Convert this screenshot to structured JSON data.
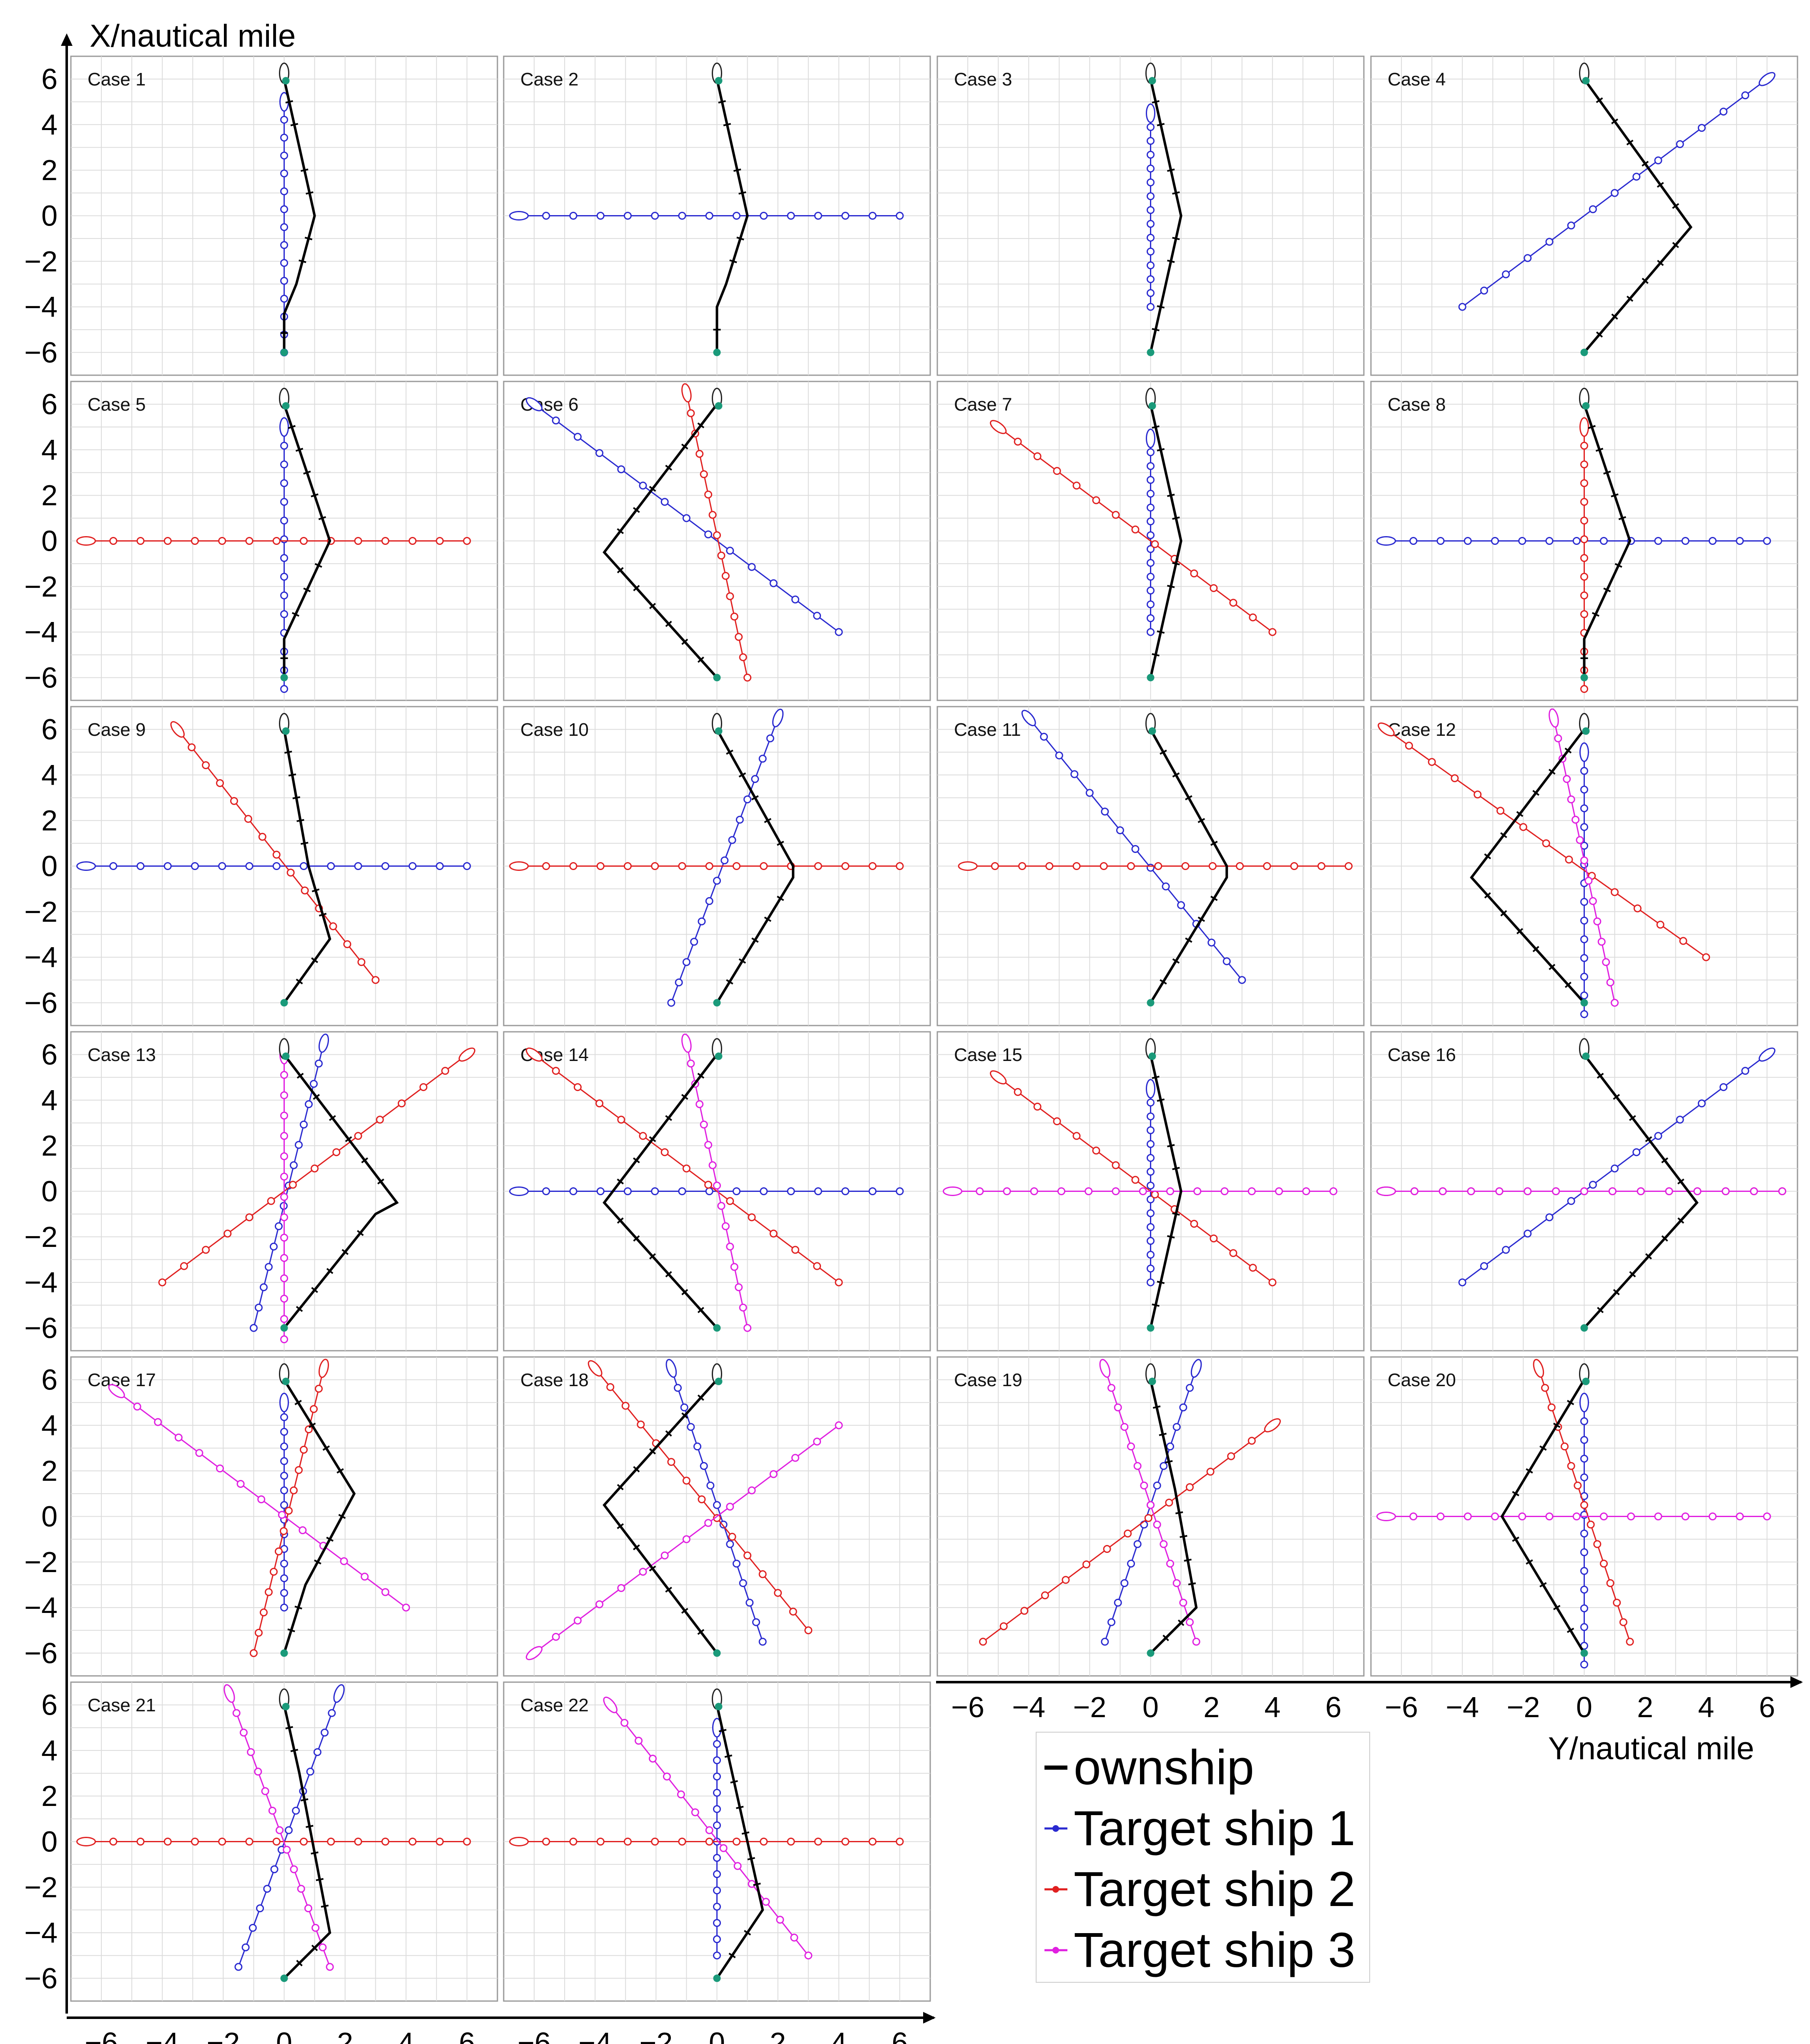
{
  "figure": {
    "y_axis_title": "X/nautical mile",
    "x_axis_title": "Y/nautical mile"
  },
  "colors": {
    "ownship": "#000000",
    "target_ship_1": "#2a2ad0",
    "target_ship_2": "#e02020",
    "target_ship_3": "#e020e0",
    "start_marker": "#1a9a7a",
    "grid": "#dcdcdc",
    "frame": "#9a9a9a"
  },
  "legend": [
    {
      "label": "ownship",
      "series": "ownship"
    },
    {
      "label": "Target ship 1",
      "series": "target_ship_1"
    },
    {
      "label": "Target ship 2",
      "series": "target_ship_2"
    },
    {
      "label": "Target ship 3",
      "series": "target_ship_3"
    }
  ],
  "chart_data": {
    "type": "line",
    "xlabel": "Y/nautical mile",
    "ylabel": "X/nautical mile",
    "xlim": [
      -7,
      7
    ],
    "ylim": [
      -7,
      7
    ],
    "x_ticks": [
      -6,
      -4,
      -2,
      0,
      2,
      4,
      6
    ],
    "y_ticks": [
      6,
      4,
      2,
      0,
      -2,
      -4,
      -6
    ],
    "grid": true,
    "legend_position": "bottom-right",
    "cases": [
      {
        "label": "Case 1",
        "ownship": [
          [
            0,
            6
          ],
          [
            0.5,
            3
          ],
          [
            1,
            0
          ],
          [
            0.4,
            -3
          ],
          [
            0,
            -4.3
          ],
          [
            0,
            -6
          ]
        ],
        "targets": [
          {
            "series": "target_ship_1",
            "from": [
              0,
              5
            ],
            "to": [
              0,
              -6
            ]
          }
        ]
      },
      {
        "label": "Case 2",
        "ownship": [
          [
            0,
            6
          ],
          [
            0.5,
            3
          ],
          [
            1,
            0
          ],
          [
            0.3,
            -3
          ],
          [
            0,
            -4
          ],
          [
            0,
            -6
          ]
        ],
        "targets": [
          {
            "series": "target_ship_1",
            "from": [
              -6.5,
              0
            ],
            "to": [
              6,
              0
            ]
          }
        ]
      },
      {
        "label": "Case 3",
        "ownship": [
          [
            0,
            6
          ],
          [
            0.5,
            3
          ],
          [
            1,
            0
          ],
          [
            0.5,
            -3
          ],
          [
            0,
            -6
          ]
        ],
        "targets": [
          {
            "series": "target_ship_1",
            "from": [
              0,
              4.5
            ],
            "to": [
              0,
              -4
            ]
          }
        ]
      },
      {
        "label": "Case 4",
        "ownship": [
          [
            0,
            6
          ],
          [
            3.5,
            -0.5
          ],
          [
            0,
            -6
          ]
        ],
        "targets": [
          {
            "series": "target_ship_1",
            "from": [
              6,
              6
            ],
            "to": [
              -4,
              -4
            ]
          }
        ]
      },
      {
        "label": "Case 5",
        "ownship": [
          [
            0,
            6
          ],
          [
            1.5,
            0
          ],
          [
            0,
            -4.3
          ],
          [
            0,
            -6
          ]
        ],
        "targets": [
          {
            "series": "target_ship_1",
            "from": [
              0,
              5
            ],
            "to": [
              0,
              -6.5
            ]
          },
          {
            "series": "target_ship_2",
            "from": [
              -6.5,
              0
            ],
            "to": [
              6,
              0
            ]
          }
        ]
      },
      {
        "label": "Case 6",
        "ownship": [
          [
            0,
            6
          ],
          [
            -3.7,
            -0.5
          ],
          [
            0,
            -6
          ]
        ],
        "targets": [
          {
            "series": "target_ship_1",
            "from": [
              -6,
              6
            ],
            "to": [
              4,
              -4
            ]
          },
          {
            "series": "target_ship_2",
            "from": [
              -1,
              6.5
            ],
            "to": [
              1,
              -6
            ]
          }
        ]
      },
      {
        "label": "Case 7",
        "ownship": [
          [
            0,
            6
          ],
          [
            0.5,
            3
          ],
          [
            1,
            0
          ],
          [
            0.5,
            -3
          ],
          [
            0,
            -6
          ]
        ],
        "targets": [
          {
            "series": "target_ship_1",
            "from": [
              0,
              4.5
            ],
            "to": [
              0,
              -4
            ]
          },
          {
            "series": "target_ship_2",
            "from": [
              -5,
              5
            ],
            "to": [
              4,
              -4
            ]
          }
        ]
      },
      {
        "label": "Case 8",
        "ownship": [
          [
            0,
            6
          ],
          [
            1.5,
            0
          ],
          [
            0,
            -4.3
          ],
          [
            0,
            -6
          ]
        ],
        "targets": [
          {
            "series": "target_ship_1",
            "from": [
              -6.5,
              0
            ],
            "to": [
              6,
              0
            ]
          },
          {
            "series": "target_ship_2",
            "from": [
              0,
              5
            ],
            "to": [
              0,
              -6.5
            ]
          }
        ]
      },
      {
        "label": "Case 9",
        "ownship": [
          [
            0,
            6
          ],
          [
            0.8,
            0
          ],
          [
            1.5,
            -3.2
          ],
          [
            0,
            -6
          ]
        ],
        "targets": [
          {
            "series": "target_ship_1",
            "from": [
              -6.5,
              0
            ],
            "to": [
              6,
              0
            ]
          },
          {
            "series": "target_ship_2",
            "from": [
              -3.5,
              6
            ],
            "to": [
              3,
              -5
            ]
          }
        ]
      },
      {
        "label": "Case 10",
        "ownship": [
          [
            0,
            6
          ],
          [
            2.5,
            0
          ],
          [
            2.5,
            -0.5
          ],
          [
            0,
            -6
          ]
        ],
        "targets": [
          {
            "series": "target_ship_1",
            "from": [
              2,
              6.5
            ],
            "to": [
              -1.5,
              -6
            ]
          },
          {
            "series": "target_ship_2",
            "from": [
              -6.5,
              0
            ],
            "to": [
              6,
              0
            ]
          }
        ]
      },
      {
        "label": "Case 11",
        "ownship": [
          [
            0,
            6
          ],
          [
            2.5,
            0
          ],
          [
            2.5,
            -0.5
          ],
          [
            0,
            -6
          ]
        ],
        "targets": [
          {
            "series": "target_ship_1",
            "from": [
              -4,
              6.5
            ],
            "to": [
              3,
              -5
            ]
          },
          {
            "series": "target_ship_2",
            "from": [
              -6,
              0
            ],
            "to": [
              6.5,
              0
            ]
          }
        ]
      },
      {
        "label": "Case 12",
        "ownship": [
          [
            0,
            6
          ],
          [
            -3.7,
            -0.5
          ],
          [
            0,
            -6
          ]
        ],
        "targets": [
          {
            "series": "target_ship_1",
            "from": [
              0,
              5
            ],
            "to": [
              0,
              -6.5
            ]
          },
          {
            "series": "target_ship_2",
            "from": [
              -6.5,
              6
            ],
            "to": [
              4,
              -4
            ]
          },
          {
            "series": "target_ship_3",
            "from": [
              -1,
              6.5
            ],
            "to": [
              1,
              -6
            ]
          }
        ]
      },
      {
        "label": "Case 13",
        "ownship": [
          [
            0,
            6
          ],
          [
            3.7,
            -0.5
          ],
          [
            3,
            -1
          ],
          [
            0,
            -6
          ]
        ],
        "targets": [
          {
            "series": "target_ship_1",
            "from": [
              1.3,
              6.5
            ],
            "to": [
              -1,
              -6
            ]
          },
          {
            "series": "target_ship_2",
            "from": [
              6,
              6
            ],
            "to": [
              -4,
              -4
            ]
          },
          {
            "series": "target_ship_3",
            "from": [
              0,
              6
            ],
            "to": [
              0,
              -6.5
            ]
          }
        ]
      },
      {
        "label": "Case 14",
        "ownship": [
          [
            0,
            6
          ],
          [
            -3.7,
            -0.5
          ],
          [
            0,
            -6
          ]
        ],
        "targets": [
          {
            "series": "target_ship_1",
            "from": [
              -6.5,
              0
            ],
            "to": [
              6,
              0
            ]
          },
          {
            "series": "target_ship_2",
            "from": [
              -6,
              6
            ],
            "to": [
              4,
              -4
            ]
          },
          {
            "series": "target_ship_3",
            "from": [
              -1,
              6.5
            ],
            "to": [
              1,
              -6
            ]
          }
        ]
      },
      {
        "label": "Case 15",
        "ownship": [
          [
            0,
            6
          ],
          [
            0.5,
            3
          ],
          [
            1,
            0
          ],
          [
            0.5,
            -3
          ],
          [
            0,
            -6
          ]
        ],
        "targets": [
          {
            "series": "target_ship_1",
            "from": [
              0,
              4.5
            ],
            "to": [
              0,
              -4
            ]
          },
          {
            "series": "target_ship_2",
            "from": [
              -5,
              5
            ],
            "to": [
              4,
              -4
            ]
          },
          {
            "series": "target_ship_3",
            "from": [
              -6.5,
              0
            ],
            "to": [
              6,
              0
            ]
          }
        ]
      },
      {
        "label": "Case 16",
        "ownship": [
          [
            0,
            6
          ],
          [
            3.7,
            -0.5
          ],
          [
            0,
            -6
          ]
        ],
        "targets": [
          {
            "series": "target_ship_1",
            "from": [
              6,
              6
            ],
            "to": [
              -4,
              -4
            ]
          },
          {
            "series": "target_ship_2",
            "from": [
              -6.5,
              0
            ],
            "to": [
              6.5,
              0
            ]
          },
          {
            "series": "target_ship_3",
            "from": [
              -6.5,
              0
            ],
            "to": [
              6.5,
              0
            ]
          }
        ]
      },
      {
        "label": "Case 17",
        "ownship": [
          [
            0,
            6
          ],
          [
            2.3,
            1
          ],
          [
            0.7,
            -3
          ],
          [
            0,
            -6
          ]
        ],
        "targets": [
          {
            "series": "target_ship_1",
            "from": [
              0,
              5
            ],
            "to": [
              0,
              -4
            ]
          },
          {
            "series": "target_ship_2",
            "from": [
              1.3,
              6.5
            ],
            "to": [
              -1,
              -6
            ]
          },
          {
            "series": "target_ship_3",
            "from": [
              -5.5,
              5.5
            ],
            "to": [
              4,
              -4
            ]
          }
        ]
      },
      {
        "label": "Case 18",
        "ownship": [
          [
            0,
            6
          ],
          [
            -3.7,
            0.5
          ],
          [
            0,
            -6
          ]
        ],
        "targets": [
          {
            "series": "target_ship_1",
            "from": [
              -1.5,
              6.5
            ],
            "to": [
              1.5,
              -5.5
            ]
          },
          {
            "series": "target_ship_2",
            "from": [
              -4,
              6.5
            ],
            "to": [
              3,
              -5
            ]
          },
          {
            "series": "target_ship_3",
            "from": [
              -6,
              -6
            ],
            "to": [
              4,
              4
            ]
          }
        ]
      },
      {
        "label": "Case 19",
        "ownship": [
          [
            0,
            6
          ],
          [
            0.8,
            1.2
          ],
          [
            1.5,
            -4
          ],
          [
            0,
            -6
          ]
        ],
        "targets": [
          {
            "series": "target_ship_1",
            "from": [
              1.5,
              6.5
            ],
            "to": [
              -1.5,
              -5.5
            ]
          },
          {
            "series": "target_ship_2",
            "from": [
              4,
              4
            ],
            "to": [
              -5.5,
              -5.5
            ]
          },
          {
            "series": "target_ship_3",
            "from": [
              -1.5,
              6.5
            ],
            "to": [
              1.5,
              -5.5
            ]
          }
        ]
      },
      {
        "label": "Case 20",
        "ownship": [
          [
            0,
            6
          ],
          [
            -2.7,
            0
          ],
          [
            0,
            -6
          ]
        ],
        "targets": [
          {
            "series": "target_ship_1",
            "from": [
              0,
              5
            ],
            "to": [
              0,
              -6.5
            ]
          },
          {
            "series": "target_ship_2",
            "from": [
              -1.5,
              6.5
            ],
            "to": [
              1.5,
              -5.5
            ]
          },
          {
            "series": "target_ship_3",
            "from": [
              -6.5,
              0
            ],
            "to": [
              6,
              0
            ]
          }
        ]
      },
      {
        "label": "Case 21",
        "ownship": [
          [
            0,
            6
          ],
          [
            0.5,
            3
          ],
          [
            1.5,
            -4
          ],
          [
            0,
            -6
          ]
        ],
        "targets": [
          {
            "series": "target_ship_1",
            "from": [
              1.8,
              6.5
            ],
            "to": [
              -1.5,
              -5.5
            ]
          },
          {
            "series": "target_ship_2",
            "from": [
              -6.5,
              0
            ],
            "to": [
              6,
              0
            ]
          },
          {
            "series": "target_ship_3",
            "from": [
              -1.8,
              6.5
            ],
            "to": [
              1.5,
              -5.5
            ]
          }
        ]
      },
      {
        "label": "Case 22",
        "ownship": [
          [
            0,
            6
          ],
          [
            1.5,
            -3
          ],
          [
            0,
            -6
          ]
        ],
        "targets": [
          {
            "series": "target_ship_1",
            "from": [
              0,
              5
            ],
            "to": [
              0,
              -5
            ]
          },
          {
            "series": "target_ship_2",
            "from": [
              -6.5,
              0
            ],
            "to": [
              6,
              0
            ]
          },
          {
            "series": "target_ship_3",
            "from": [
              -3.5,
              6
            ],
            "to": [
              3,
              -5
            ]
          }
        ]
      }
    ]
  }
}
